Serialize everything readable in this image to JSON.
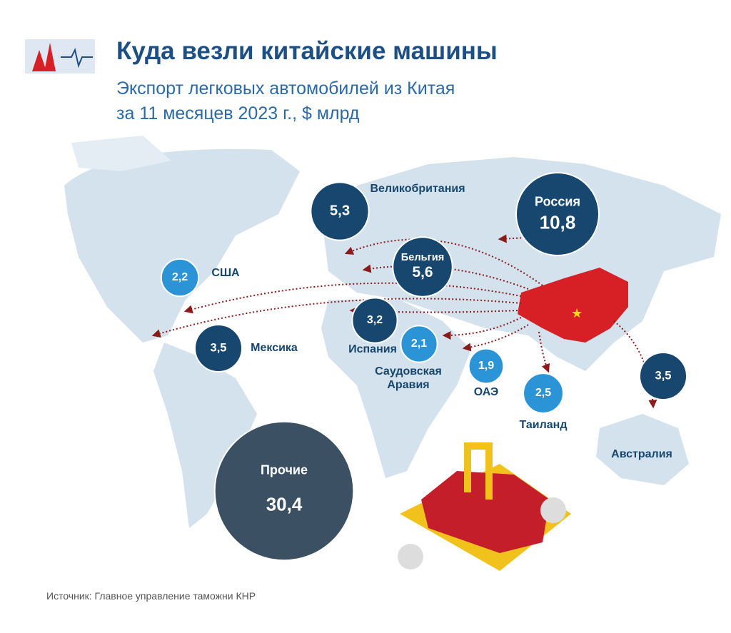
{
  "chart_data": {
    "type": "bubble-map",
    "title": "Куда везли китайские машины",
    "subtitle": [
      "Экспорт легковых автомобилей из Китая",
      "за 11 месяцев 2023 г., $ млрд"
    ],
    "categories": [
      "Россия",
      "Бельгия",
      "Великобритания",
      "США",
      "Мексика",
      "Испания",
      "Саудовская Аравия",
      "ОАЭ",
      "Таиланд",
      "Австралия",
      "Прочие"
    ],
    "values": [
      10.8,
      5.6,
      5.3,
      2.2,
      3.5,
      3.2,
      2.1,
      1.9,
      2.5,
      3.5,
      30.4
    ],
    "value_labels": [
      "10,8",
      "5,6",
      "5,3",
      "2,2",
      "3,5",
      "3,2",
      "2,1",
      "1,9",
      "2,5",
      "3,5",
      "30,4"
    ],
    "colors": [
      "#17476f",
      "#17476f",
      "#17476f",
      "#2a94d6",
      "#17476f",
      "#17476f",
      "#2a94d6",
      "#2a94d6",
      "#2a94d6",
      "#17476f",
      "#3b5163"
    ],
    "source": "Источник: Главное управление таможни КНР"
  }
}
